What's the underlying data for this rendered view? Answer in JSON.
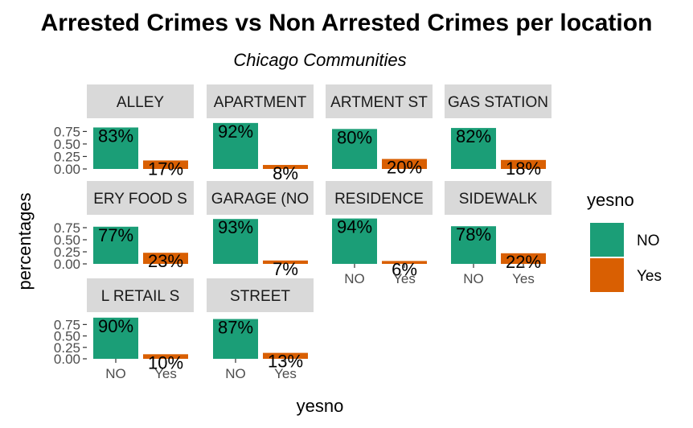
{
  "chart_data": {
    "type": "bar",
    "title": "Arrested Crimes vs Non Arrested Crimes per location",
    "subtitle": "Chicago Communities",
    "xlabel": "yesno",
    "ylabel": "percentages",
    "categories": [
      "NO",
      "Yes"
    ],
    "y_ticks": [
      "0.00",
      "0.25",
      "0.50",
      "0.75"
    ],
    "ylim": [
      0,
      0.95
    ],
    "grid": false,
    "legend": {
      "title": "yesno",
      "position": "right",
      "entries": [
        {
          "label": "NO",
          "color": "#1b9e77"
        },
        {
          "label": "Yes",
          "color": "#d95f02"
        }
      ]
    },
    "panels": [
      {
        "location": "ALLEY",
        "values": [
          0.83,
          0.17
        ],
        "labels": [
          "83%",
          "17%"
        ]
      },
      {
        "location": "APARTMENT",
        "values": [
          0.92,
          0.08
        ],
        "labels": [
          "92%",
          "8%"
        ]
      },
      {
        "location": "ARTMENT ST",
        "values": [
          0.8,
          0.2
        ],
        "labels": [
          "80%",
          "20%"
        ]
      },
      {
        "location": "GAS STATION",
        "values": [
          0.82,
          0.18
        ],
        "labels": [
          "82%",
          "18%"
        ]
      },
      {
        "location": "ERY FOOD S",
        "values": [
          0.77,
          0.23
        ],
        "labels": [
          "77%",
          "23%"
        ]
      },
      {
        "location": "GARAGE (NO",
        "values": [
          0.93,
          0.07
        ],
        "labels": [
          "93%",
          "7%"
        ]
      },
      {
        "location": "RESIDENCE",
        "values": [
          0.94,
          0.06
        ],
        "labels": [
          "94%",
          "6%"
        ]
      },
      {
        "location": "SIDEWALK",
        "values": [
          0.78,
          0.22
        ],
        "labels": [
          "78%",
          "22%"
        ]
      },
      {
        "location": "L RETAIL S",
        "values": [
          0.9,
          0.1
        ],
        "labels": [
          "90%",
          "10%"
        ]
      },
      {
        "location": "STREET",
        "values": [
          0.87,
          0.13
        ],
        "labels": [
          "87%",
          "13%"
        ]
      }
    ]
  }
}
